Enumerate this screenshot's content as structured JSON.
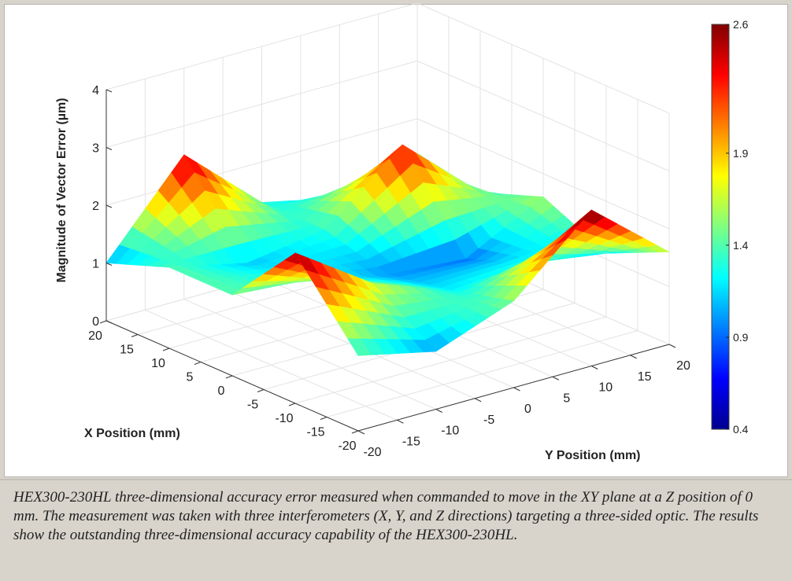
{
  "chart_data": {
    "type": "surface",
    "title": "",
    "xlabel": "X Position (mm)",
    "ylabel": "Y Position (mm)",
    "zlabel": "Magnitude of Vector Error (µm)",
    "x_ticks": [
      "20",
      "15",
      "10",
      "5",
      "0",
      "-5",
      "-10",
      "-15",
      "-20"
    ],
    "y_ticks": [
      "-20",
      "-15",
      "-10",
      "-5",
      "0",
      "5",
      "10",
      "15",
      "20"
    ],
    "z_ticks": [
      "0",
      "1",
      "2",
      "3",
      "4"
    ],
    "xlim": [
      -20,
      20
    ],
    "ylim": [
      -20,
      20
    ],
    "zlim": [
      0,
      4
    ],
    "grid": true,
    "colormap": "jet",
    "colorbar": {
      "ticks": [
        "2.6",
        "1.9",
        "1.4",
        "0.9",
        "0.4"
      ],
      "range": [
        0.4,
        2.6
      ]
    },
    "x": [
      -20,
      -10,
      0,
      10,
      20
    ],
    "y": [
      -20,
      -10,
      0,
      10,
      20
    ],
    "z": [
      [
        1.3,
        1.0,
        1.5,
        2.7,
        1.6
      ],
      [
        2.6,
        1.7,
        1.2,
        1.3,
        1.1
      ],
      [
        1.4,
        1.3,
        1.0,
        0.9,
        1.6
      ],
      [
        1.4,
        1.1,
        1.3,
        2.4,
        1.2
      ],
      [
        1.0,
        2.5,
        1.3,
        1.0,
        1.4
      ]
    ]
  },
  "caption": {
    "text": "HEX300-230HL three-dimensional accuracy error measured when commanded to move in the XY plane at a Z position of 0 mm. The measurement was taken with three interferometers (X, Y, and Z directions) targeting a three-sided optic. The results show the outstanding three-dimensional accuracy capability of the HEX300-230HL."
  }
}
